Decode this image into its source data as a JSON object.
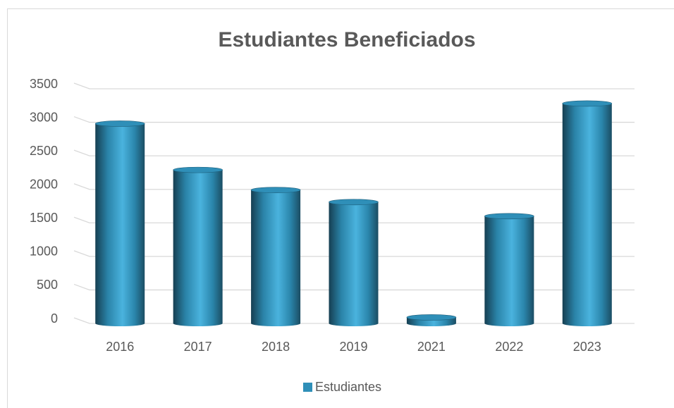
{
  "chart_data": {
    "type": "bar",
    "title": "Estudiantes Beneficiados",
    "categories": [
      "2016",
      "2017",
      "2018",
      "2019",
      "2021",
      "2022",
      "2023"
    ],
    "series": [
      {
        "name": "Estudiantes",
        "color": "#2f8fb8",
        "values": [
          2980,
          2290,
          1990,
          1810,
          90,
          1600,
          3280
        ]
      }
    ],
    "ylim": [
      0,
      3500
    ],
    "yticks": [
      0,
      500,
      1000,
      1500,
      2000,
      2500,
      3000,
      3500
    ],
    "grid": true,
    "legend": "bottom"
  }
}
